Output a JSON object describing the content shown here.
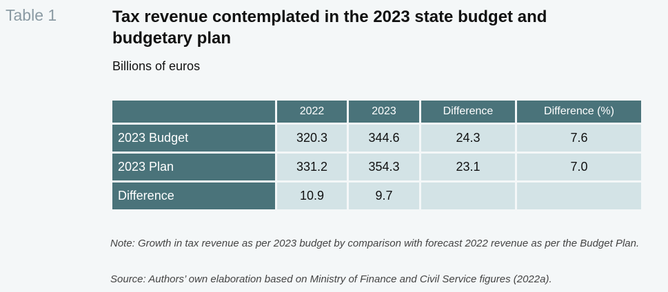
{
  "table_label": "Table 1",
  "title": "Tax revenue contemplated in the 2023 state budget and budgetary plan",
  "subtitle": "Billions of euros",
  "columns": [
    "",
    "2022",
    "2023",
    "Difference",
    "Difference (%)"
  ],
  "rows": [
    {
      "label": "2023 Budget",
      "values": [
        "320.3",
        "344.6",
        "24.3",
        "7.6"
      ]
    },
    {
      "label": "2023 Plan",
      "values": [
        "331.2",
        "354.3",
        "23.1",
        "7.0"
      ]
    },
    {
      "label": "Difference",
      "values": [
        "10.9",
        "9.7",
        "",
        ""
      ]
    }
  ],
  "note": "Note: Growth in tax revenue as per 2023 budget by comparison with forecast 2022 revenue as per the Budget Plan.",
  "source": "Source: Authors’ own elaboration based on Ministry of Finance and Civil Service figures (2022a)."
}
